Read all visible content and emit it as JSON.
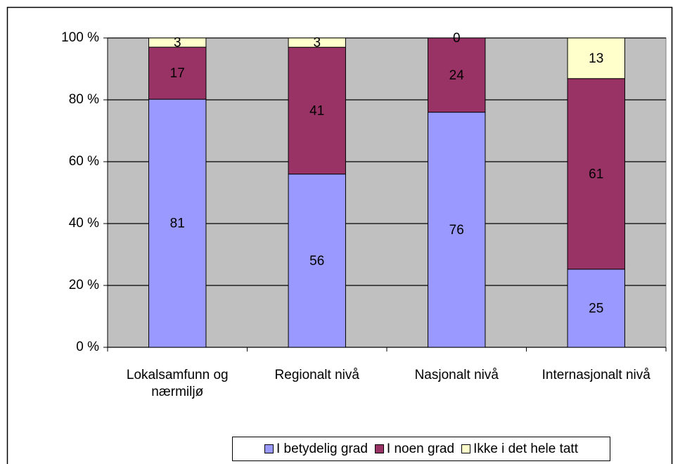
{
  "chart_data": {
    "type": "bar",
    "stacked": true,
    "normalize": true,
    "categories": [
      "Lokalsamfunn og nærmiljø",
      "Regionalt nivå",
      "Nasjonalt nivå",
      "Internasjonalt nivå"
    ],
    "series": [
      {
        "name": "I betydelig grad",
        "color": "#9999ff",
        "values": [
          81,
          56,
          76,
          25
        ]
      },
      {
        "name": "I noen grad",
        "color": "#993366",
        "values": [
          17,
          41,
          24,
          61
        ]
      },
      {
        "name": "Ikke i det hele tatt",
        "color": "#ffffcc",
        "values": [
          3,
          3,
          0,
          13
        ]
      }
    ],
    "ylim": [
      0,
      100
    ],
    "yticks": [
      {
        "value": 0,
        "label": "0 %"
      },
      {
        "value": 20,
        "label": "20 %"
      },
      {
        "value": 40,
        "label": "40 %"
      },
      {
        "value": 60,
        "label": "60 %"
      },
      {
        "value": 80,
        "label": "80 %"
      },
      {
        "value": 100,
        "label": "100 %"
      }
    ],
    "grid": true,
    "legend": "bottom",
    "plot_background": "#c0c0c0"
  }
}
